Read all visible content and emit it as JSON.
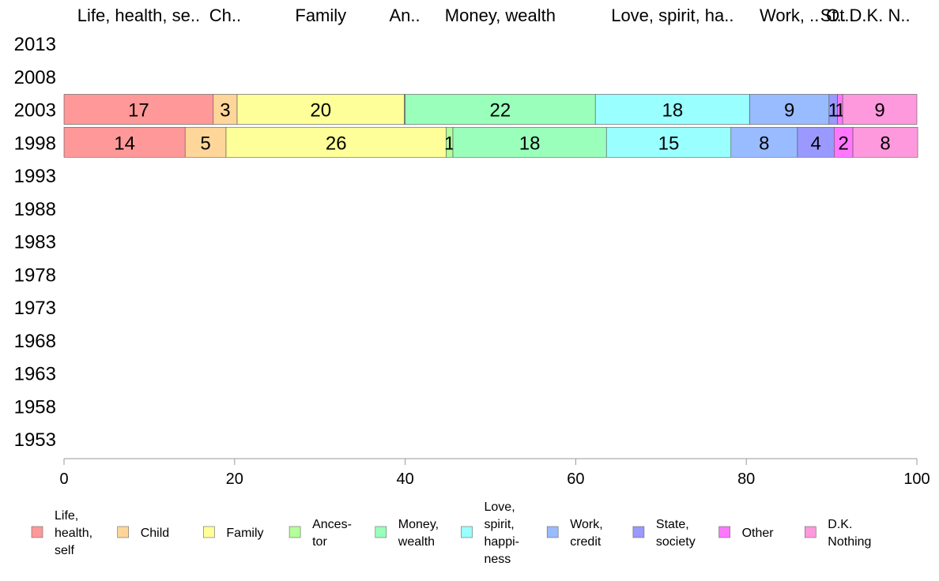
{
  "chart_data": {
    "type": "bar",
    "orientation": "horizontal",
    "stacked": true,
    "xlim": [
      0,
      100
    ],
    "x_ticks": [
      "0",
      "20",
      "40",
      "60",
      "80",
      "100"
    ],
    "years": [
      "2013",
      "2008",
      "2003",
      "1998",
      "1993",
      "1988",
      "1983",
      "1978",
      "1973",
      "1968",
      "1963",
      "1958",
      "1953"
    ],
    "header_labels": [
      "Life, health, se..",
      "Ch..",
      "Family",
      "An..",
      "Money, wealth",
      "Love, spirit, ha..",
      "Work, ..",
      "St..",
      "Ot..",
      "D.K. N.."
    ],
    "legend_position": "bottom",
    "categories": [
      {
        "name": "Life, health, self",
        "legend_lines": [
          "Life,",
          "health,",
          "self"
        ],
        "color": "#ff9999"
      },
      {
        "name": "Child",
        "legend_lines": [
          "Child"
        ],
        "color": "#ffd699"
      },
      {
        "name": "Family",
        "legend_lines": [
          "Family"
        ],
        "color": "#ffff99"
      },
      {
        "name": "Ancestor",
        "legend_lines": [
          "Ances-",
          "tor"
        ],
        "color": "#b3ff99"
      },
      {
        "name": "Money, wealth",
        "legend_lines": [
          "Money,",
          "wealth"
        ],
        "color": "#99ffbb"
      },
      {
        "name": "Love, spirit, happiness",
        "legend_lines": [
          "Love,",
          "spirit,",
          "happi-",
          "ness"
        ],
        "color": "#99ffff"
      },
      {
        "name": "Work, credit",
        "legend_lines": [
          "Work,",
          "credit"
        ],
        "color": "#99bbff"
      },
      {
        "name": "State, society",
        "legend_lines": [
          "State,",
          "society"
        ],
        "color": "#9999ff"
      },
      {
        "name": "Other",
        "legend_lines": [
          "Other"
        ],
        "color": "#ff77ff"
      },
      {
        "name": "D.K. Nothing",
        "legend_lines": [
          "D.K.",
          "Nothing"
        ],
        "color": "#ff99dd"
      }
    ],
    "rows": [
      {
        "year": "2003",
        "values": [
          17.5,
          2.8,
          19.6,
          0.1,
          22.3,
          18.1,
          9.3,
          1.0,
          0.6,
          8.7
        ],
        "labels": [
          "17",
          "3",
          "20",
          "",
          "22",
          "18",
          "9",
          "1",
          "1",
          "9"
        ]
      },
      {
        "year": "1998",
        "values": [
          14.2,
          4.8,
          25.8,
          0.8,
          18.0,
          14.6,
          7.8,
          4.3,
          2.2,
          7.6
        ],
        "labels": [
          "14",
          "5",
          "26",
          "1",
          "18",
          "15",
          "8",
          "4",
          "2",
          "8"
        ]
      }
    ]
  }
}
